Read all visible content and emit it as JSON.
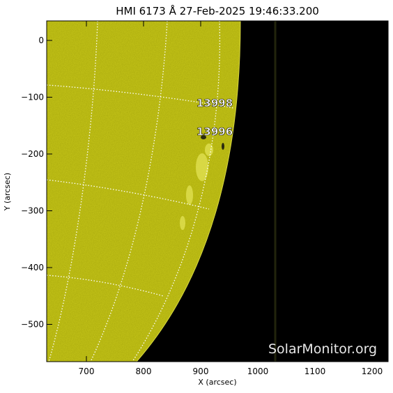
{
  "title": "HMI 6173 Å 27-Feb-2025 19:46:33.200",
  "xlabel": "X (arcsec)",
  "ylabel": "Y (arcsec)",
  "x_ticks": [
    "700",
    "800",
    "900",
    "1000",
    "1100",
    "1200"
  ],
  "y_ticks": [
    "0",
    "−100",
    "−200",
    "−300",
    "−400",
    "−500"
  ],
  "active_regions": [
    {
      "label": "13998"
    },
    {
      "label": "13996"
    }
  ],
  "watermark": "SolarMonitor.org",
  "colors": {
    "disk": "#c8c81a",
    "space": "#000000",
    "grid": "#ffffff"
  }
}
